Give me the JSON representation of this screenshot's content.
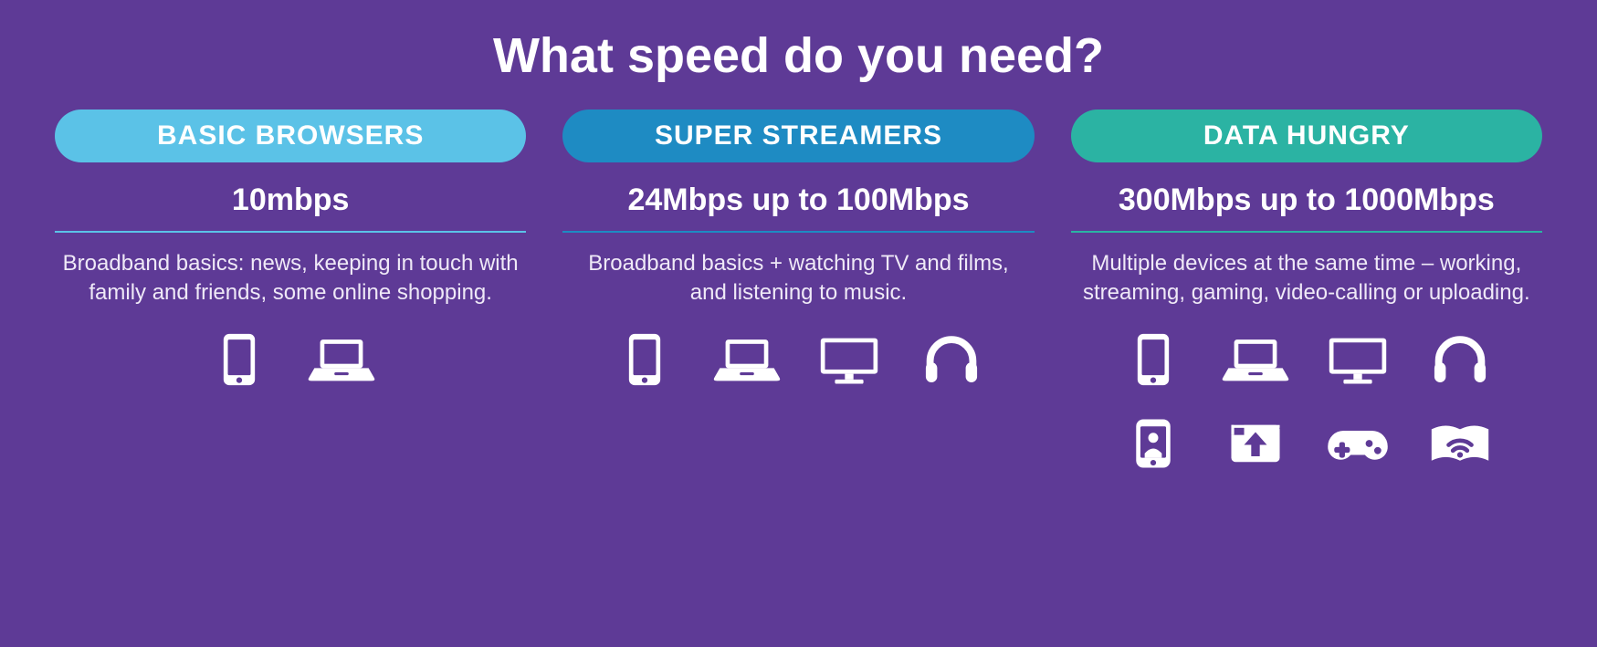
{
  "type": "infographic",
  "background_color": "#5e3a96",
  "text_color": "#ffffff",
  "desc_color": "#efe9f7",
  "title": "What speed do you need?",
  "title_fontsize": 54,
  "pill_fontsize": 30,
  "speed_fontsize": 34,
  "desc_fontsize": 24,
  "columns": [
    {
      "id": "basic",
      "pill_label": "BASIC BROWSERS",
      "pill_color": "#5bc2e7",
      "rule_color": "#5bc2e7",
      "speed": "10mbps",
      "description": "Broadband basics: news, keeping in touch with family and friends, some online shopping.",
      "icons": [
        "tablet",
        "laptop"
      ]
    },
    {
      "id": "super",
      "pill_label": "SUPER STREAMERS",
      "pill_color": "#1e8bc3",
      "rule_color": "#1e8bc3",
      "speed": "24Mbps up to 100Mbps",
      "description": "Broadband basics + watching TV and films, and listening to music.",
      "icons": [
        "tablet",
        "laptop",
        "tv",
        "headphones"
      ]
    },
    {
      "id": "hungry",
      "pill_label": "DATA HUNGRY",
      "pill_color": "#2bb3a3",
      "rule_color": "#2bb3a3",
      "speed": "300Mbps up to 1000Mbps",
      "description": "Multiple devices at the same time – working, streaming, gaming, video-calling or uploading.",
      "icons": [
        "tablet",
        "laptop",
        "tv",
        "headphones",
        "video-call",
        "upload",
        "gamepad",
        "wifi-book"
      ]
    }
  ]
}
